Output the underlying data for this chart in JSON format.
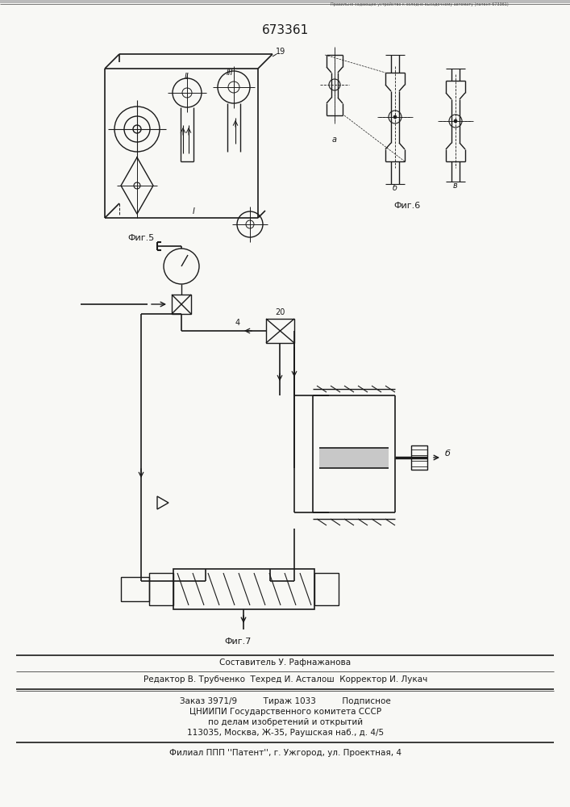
{
  "patent_number": "673361",
  "background_color": "#f8f8f5",
  "line_color": "#1a1a1a",
  "text_color": "#1a1a1a",
  "title_text": "673361",
  "fig5_label": "Фиг.5",
  "fig6_label": "Фиг.6",
  "fig7_label": "Фиг.7",
  "footer_line1": "Составитель У. Рафнажанова",
  "footer_line2": "Редактор В. Трубченко  Техред И. Асталош  Корректор И. Лукач",
  "footer_line3": "Заказ 3971/9          Тираж 1033          Подписное",
  "footer_line4": "ЦНИИПИ Государственного комитета СССР",
  "footer_line5": "по делам изобретений и открытий",
  "footer_line6": "113035, Москва, Ж-35, Раушская наб., д. 4/5",
  "footer_line7": "Филиал ППП ''Патент'', г. Ужгород, ул. Проектная, 4",
  "top_strip_text": "Правильно-задающее устройство к холодно-высадочному автомату (патент 673361)"
}
